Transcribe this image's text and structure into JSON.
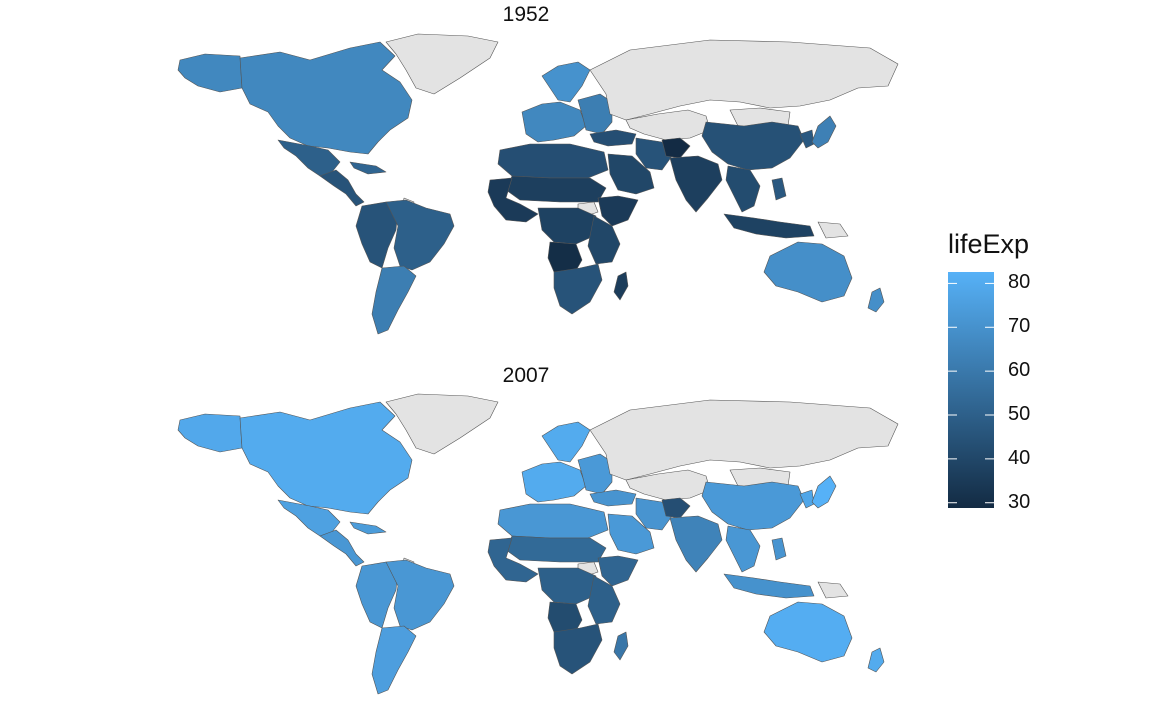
{
  "panels": [
    {
      "title": "1952",
      "regions": {
        "north_america": 66,
        "alaska": 66,
        "greenland": null,
        "mexico": 50,
        "central_america": 45,
        "caribbean": 52,
        "andes": 45,
        "brazil": 50,
        "southern_cone": 62,
        "guianas": null,
        "western_europe": 66,
        "eastern_europe": 62,
        "scandinavia": 70,
        "russia": null,
        "central_asia": null,
        "mongolia": null,
        "china": 44,
        "japan": 63,
        "korea": 47,
        "indochina": 42,
        "indonesia": 38,
        "papua": null,
        "philippines": 47,
        "south_asia": 37,
        "afghanistan": 29,
        "iran": 45,
        "arabia": 40,
        "turkey": 43,
        "north_africa": 43,
        "sahel": 37,
        "west_africa": 35,
        "central_africa": 38,
        "angola": 30,
        "horn_africa": 35,
        "east_africa": 40,
        "south_sudan": null,
        "southern_africa": 45,
        "madagascar": 36,
        "australia": 69,
        "new_zealand": 69
      }
    },
    {
      "title": "2007",
      "regions": {
        "north_america": 80,
        "alaska": 79,
        "greenland": null,
        "mexico": 76,
        "central_america": 72,
        "caribbean": 74,
        "andes": 72,
        "brazil": 72,
        "southern_cone": 75,
        "guianas": null,
        "western_europe": 80,
        "eastern_europe": 73,
        "scandinavia": 80,
        "russia": null,
        "central_asia": null,
        "mongolia": null,
        "china": 73,
        "japan": 83,
        "korea": 78,
        "indochina": 72,
        "indonesia": 70,
        "papua": null,
        "philippines": 71,
        "south_asia": 64,
        "afghanistan": 43,
        "iran": 71,
        "arabia": 73,
        "turkey": 71,
        "north_africa": 72,
        "sahel": 54,
        "west_africa": 52,
        "central_africa": 50,
        "angola": 42,
        "horn_africa": 52,
        "east_africa": 50,
        "south_sudan": null,
        "southern_africa": 45,
        "madagascar": 59,
        "australia": 81,
        "new_zealand": 80
      }
    }
  ],
  "legend": {
    "title": "lifeExp",
    "min": 28.8,
    "max": 82.6,
    "low_color": "#132B43",
    "high_color": "#56B1F7",
    "na_color": "#E3E3E3",
    "ticks": [
      "80",
      "70",
      "60",
      "50",
      "40",
      "30"
    ],
    "tick_values": [
      80,
      70,
      60,
      50,
      40,
      30
    ]
  }
}
